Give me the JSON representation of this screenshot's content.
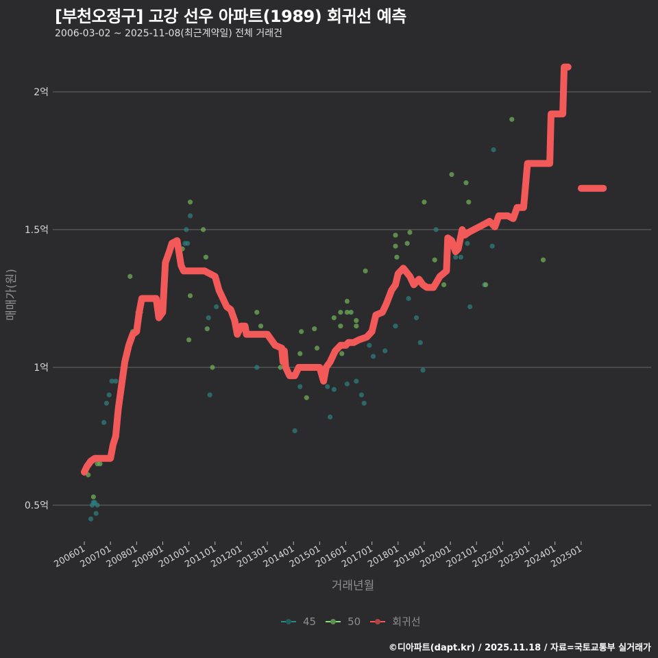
{
  "header": {
    "title": "[부천오정구] 고강 선우 아파트(1989) 회귀선 예측",
    "subtitle": "2006-03-02 ~ 2025-11-08(최근계약일) 전체 거래건"
  },
  "axes": {
    "x_title": "거래년월",
    "y_title": "매매가(원)",
    "y_ticks": [
      "2억",
      "1.5억",
      "1억",
      "0.5억"
    ],
    "x_ticks": [
      "200601",
      "200701",
      "200801",
      "200901",
      "201001",
      "201101",
      "201201",
      "201301",
      "201401",
      "201501",
      "201601",
      "201701",
      "201801",
      "201901",
      "202001",
      "202101",
      "202201",
      "202301",
      "202401",
      "202501"
    ]
  },
  "legend": {
    "items": [
      {
        "label": "45",
        "color": "#2a8a8a"
      },
      {
        "label": "50",
        "color": "#8fe07a"
      },
      {
        "label": "회귀선",
        "color": "#f25a5a"
      }
    ]
  },
  "caption": "©디아파트(dapt.kr) / 2025.11.18 / 자료=국토교통부 실거래가",
  "colors": {
    "background": "#2b2a2c",
    "grid": "#6a6a6a",
    "regression": "#f25a5a",
    "area45": "#2f7e7e",
    "area50": "#6fae5a"
  },
  "chart_data": {
    "type": "scatter",
    "title": "[부천오정구] 고강 선우 아파트(1989) 회귀선 예측",
    "subtitle": "2006-03-02 ~ 2025-11-08(최근계약일) 전체 거래건",
    "xlabel": "거래년월",
    "ylabel": "매매가(원)",
    "ylim": [
      0.4,
      2.1
    ],
    "y_unit": "억",
    "x_ticks": [
      "200601",
      "200701",
      "200801",
      "200901",
      "201001",
      "201101",
      "201201",
      "201301",
      "201401",
      "201501",
      "201601",
      "201701",
      "201801",
      "201901",
      "202001",
      "202101",
      "202201",
      "202301",
      "202401",
      "202501"
    ],
    "legend_position": "bottom",
    "grid": "horizontal",
    "series": [
      {
        "name": "45",
        "type": "scatter",
        "points": [
          [
            2006.25,
            0.45
          ],
          [
            2006.3,
            0.5
          ],
          [
            2006.35,
            0.51
          ],
          [
            2006.4,
            0.51
          ],
          [
            2006.45,
            0.47
          ],
          [
            2006.5,
            0.5
          ],
          [
            2006.75,
            0.8
          ],
          [
            2006.85,
            0.87
          ],
          [
            2006.95,
            0.9
          ],
          [
            2007.05,
            0.95
          ],
          [
            2007.2,
            0.95
          ],
          [
            2008.1,
            1.2
          ],
          [
            2009.85,
            1.45
          ],
          [
            2009.9,
            1.5
          ],
          [
            2009.95,
            1.45
          ],
          [
            2010.05,
            1.55
          ],
          [
            2010.8,
            0.9
          ],
          [
            2010.75,
            1.18
          ],
          [
            2011.05,
            1.22
          ],
          [
            2012.6,
            1.0
          ],
          [
            2014.25,
            0.93
          ],
          [
            2014.05,
            0.77
          ],
          [
            2015.3,
            0.93
          ],
          [
            2015.4,
            0.82
          ],
          [
            2015.55,
            0.92
          ],
          [
            2016.05,
            0.94
          ],
          [
            2016.4,
            0.95
          ],
          [
            2016.6,
            0.9
          ],
          [
            2016.7,
            0.87
          ],
          [
            2016.9,
            1.08
          ],
          [
            2017.05,
            1.04
          ],
          [
            2017.5,
            1.06
          ],
          [
            2017.9,
            1.15
          ],
          [
            2018.4,
            1.25
          ],
          [
            2018.7,
            1.18
          ],
          [
            2018.85,
            1.09
          ],
          [
            2018.95,
            0.99
          ],
          [
            2019.45,
            1.5
          ],
          [
            2020.2,
            1.4
          ],
          [
            2020.4,
            1.4
          ],
          [
            2020.65,
            1.45
          ],
          [
            2020.75,
            1.22
          ],
          [
            2021.3,
            1.3
          ],
          [
            2021.6,
            1.44
          ],
          [
            2021.65,
            1.79
          ]
        ]
      },
      {
        "name": "50",
        "type": "scatter",
        "points": [
          [
            2006.15,
            0.61
          ],
          [
            2006.35,
            0.53
          ],
          [
            2006.5,
            0.65
          ],
          [
            2006.6,
            0.65
          ],
          [
            2007.75,
            1.33
          ],
          [
            2007.85,
            1.13
          ],
          [
            2008.05,
            1.2
          ],
          [
            2008.15,
            1.2
          ],
          [
            2009.75,
            1.43
          ],
          [
            2010.05,
            1.6
          ],
          [
            2010.0,
            1.1
          ],
          [
            2010.05,
            1.26
          ],
          [
            2010.55,
            1.5
          ],
          [
            2010.65,
            1.4
          ],
          [
            2010.7,
            1.14
          ],
          [
            2010.9,
            1.0
          ],
          [
            2012.6,
            1.2
          ],
          [
            2012.75,
            1.15
          ],
          [
            2013.5,
            1.0
          ],
          [
            2014.3,
            1.13
          ],
          [
            2014.25,
            1.05
          ],
          [
            2014.5,
            0.89
          ],
          [
            2014.8,
            1.14
          ],
          [
            2014.9,
            1.07
          ],
          [
            2015.55,
            1.18
          ],
          [
            2015.8,
            1.2
          ],
          [
            2015.8,
            1.15
          ],
          [
            2015.85,
            1.05
          ],
          [
            2016.05,
            1.24
          ],
          [
            2016.05,
            1.2
          ],
          [
            2016.2,
            1.2
          ],
          [
            2016.4,
            1.17
          ],
          [
            2016.4,
            1.15
          ],
          [
            2016.75,
            1.35
          ],
          [
            2017.9,
            1.48
          ],
          [
            2017.9,
            1.44
          ],
          [
            2017.95,
            1.4
          ],
          [
            2018.35,
            1.45
          ],
          [
            2018.45,
            1.49
          ],
          [
            2019.0,
            1.6
          ],
          [
            2019.4,
            1.39
          ],
          [
            2019.75,
            1.3
          ],
          [
            2020.05,
            1.7
          ],
          [
            2020.6,
            1.67
          ],
          [
            2020.7,
            1.6
          ],
          [
            2021.35,
            1.3
          ],
          [
            2022.35,
            1.9
          ],
          [
            2023.55,
            1.39
          ]
        ]
      },
      {
        "name": "회귀선",
        "type": "line",
        "points": [
          [
            2006.0,
            0.62
          ],
          [
            2006.1,
            0.64
          ],
          [
            2006.25,
            0.66
          ],
          [
            2006.4,
            0.67
          ],
          [
            2007.0,
            0.67
          ],
          [
            2007.1,
            0.72
          ],
          [
            2007.2,
            0.75
          ],
          [
            2007.3,
            0.85
          ],
          [
            2007.55,
            1.02
          ],
          [
            2007.7,
            1.08
          ],
          [
            2007.85,
            1.12
          ],
          [
            2008.0,
            1.13
          ],
          [
            2008.1,
            1.2
          ],
          [
            2008.2,
            1.25
          ],
          [
            2008.6,
            1.25
          ],
          [
            2008.75,
            1.25
          ],
          [
            2008.85,
            1.18
          ],
          [
            2009.0,
            1.2
          ],
          [
            2009.1,
            1.38
          ],
          [
            2009.25,
            1.42
          ],
          [
            2009.35,
            1.45
          ],
          [
            2009.55,
            1.46
          ],
          [
            2009.7,
            1.37
          ],
          [
            2009.8,
            1.35
          ],
          [
            2010.2,
            1.35
          ],
          [
            2010.6,
            1.35
          ],
          [
            2010.8,
            1.34
          ],
          [
            2011.0,
            1.33
          ],
          [
            2011.15,
            1.28
          ],
          [
            2011.3,
            1.25
          ],
          [
            2011.45,
            1.22
          ],
          [
            2011.6,
            1.21
          ],
          [
            2011.75,
            1.17
          ],
          [
            2011.85,
            1.12
          ],
          [
            2012.0,
            1.15
          ],
          [
            2012.15,
            1.15
          ],
          [
            2012.2,
            1.12
          ],
          [
            2013.0,
            1.12
          ],
          [
            2013.3,
            1.08
          ],
          [
            2013.55,
            1.07
          ],
          [
            2013.6,
            1.02
          ],
          [
            2013.65,
            1.06
          ],
          [
            2013.7,
            1.0
          ],
          [
            2013.85,
            0.97
          ],
          [
            2014.05,
            0.97
          ],
          [
            2014.2,
            1.0
          ],
          [
            2014.6,
            1.0
          ],
          [
            2015.0,
            1.0
          ],
          [
            2015.15,
            0.95
          ],
          [
            2015.25,
            1.0
          ],
          [
            2015.4,
            1.02
          ],
          [
            2015.6,
            1.06
          ],
          [
            2015.8,
            1.08
          ],
          [
            2016.0,
            1.08
          ],
          [
            2016.1,
            1.09
          ],
          [
            2016.3,
            1.09
          ],
          [
            2016.5,
            1.1
          ],
          [
            2016.8,
            1.11
          ],
          [
            2017.0,
            1.13
          ],
          [
            2017.15,
            1.19
          ],
          [
            2017.4,
            1.2
          ],
          [
            2017.55,
            1.23
          ],
          [
            2017.75,
            1.28
          ],
          [
            2017.9,
            1.3
          ],
          [
            2018.0,
            1.34
          ],
          [
            2018.2,
            1.36
          ],
          [
            2018.45,
            1.33
          ],
          [
            2018.6,
            1.3
          ],
          [
            2018.8,
            1.32
          ],
          [
            2018.95,
            1.3
          ],
          [
            2019.1,
            1.29
          ],
          [
            2019.35,
            1.29
          ],
          [
            2019.6,
            1.33
          ],
          [
            2019.85,
            1.35
          ],
          [
            2019.9,
            1.47
          ],
          [
            2020.05,
            1.46
          ],
          [
            2020.2,
            1.42
          ],
          [
            2020.3,
            1.43
          ],
          [
            2020.45,
            1.5
          ],
          [
            2020.55,
            1.48
          ],
          [
            2020.7,
            1.49
          ],
          [
            2020.9,
            1.5
          ],
          [
            2021.1,
            1.51
          ],
          [
            2021.3,
            1.52
          ],
          [
            2021.5,
            1.53
          ],
          [
            2021.7,
            1.51
          ],
          [
            2021.85,
            1.55
          ],
          [
            2022.2,
            1.55
          ],
          [
            2022.4,
            1.54
          ],
          [
            2022.55,
            1.58
          ],
          [
            2022.8,
            1.58
          ],
          [
            2022.95,
            1.74
          ],
          [
            2023.8,
            1.74
          ],
          [
            2023.85,
            1.92
          ],
          [
            2024.3,
            1.92
          ],
          [
            2024.35,
            2.09
          ],
          [
            2024.5,
            2.09
          ]
        ]
      },
      {
        "name": "회귀선 (예측)",
        "type": "line",
        "points": [
          [
            2025.0,
            1.65
          ],
          [
            2025.85,
            1.65
          ]
        ]
      }
    ]
  }
}
